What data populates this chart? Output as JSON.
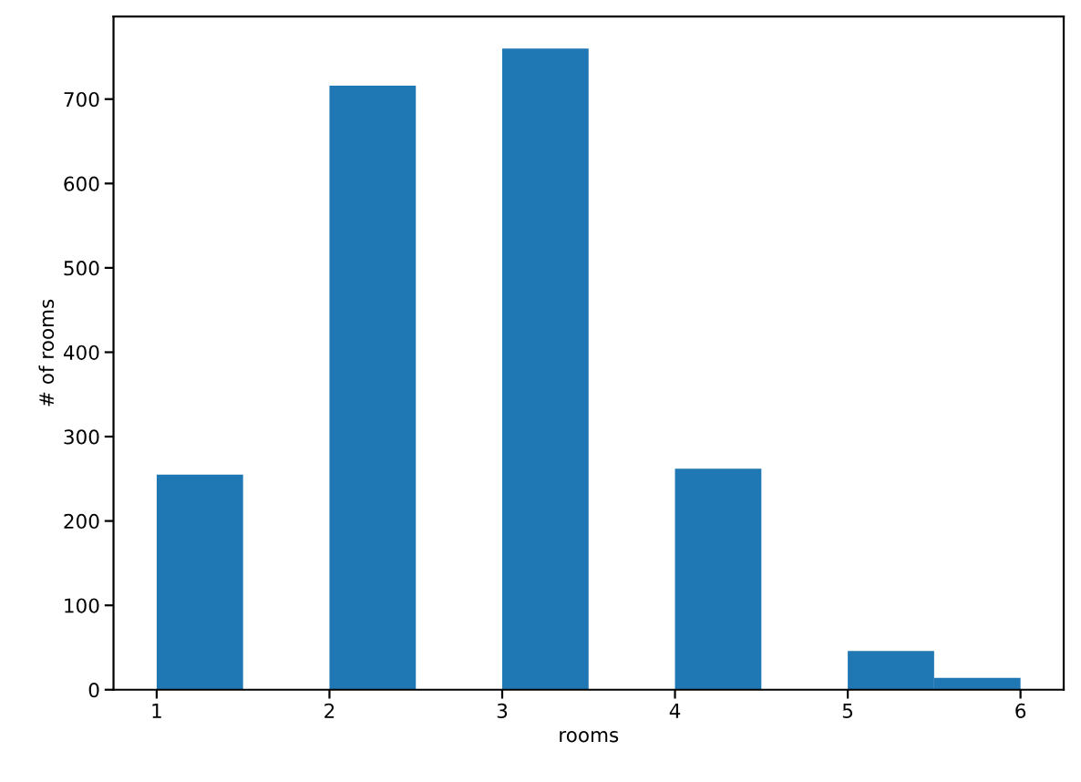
{
  "chart_data": {
    "type": "histogram",
    "xlabel": "rooms",
    "ylabel": "# of rooms",
    "bins": [
      1,
      1.5,
      2,
      2.5,
      3,
      3.5,
      4,
      4.5,
      5,
      5.5,
      6
    ],
    "values": [
      255,
      0,
      716,
      0,
      760,
      0,
      262,
      0,
      46,
      14
    ],
    "color": "#1f77b4",
    "xlim": [
      0.75,
      6.25
    ],
    "xticks": [
      1,
      2,
      3,
      4,
      5,
      6
    ],
    "ylim": [
      0,
      798
    ],
    "yticks": [
      0,
      100,
      200,
      300,
      400,
      500,
      600,
      700
    ],
    "grid": false
  }
}
